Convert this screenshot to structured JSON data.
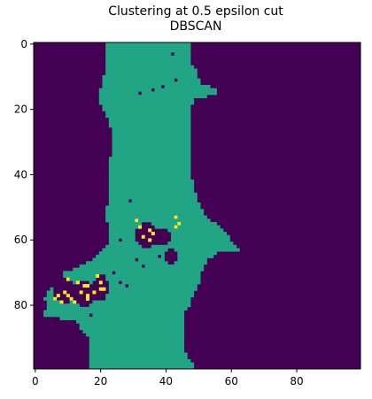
{
  "chart_data": {
    "type": "heatmap",
    "title_lines": [
      "Clustering at 0.5 epsilon cut",
      "DBSCAN"
    ],
    "xlabel": "",
    "ylabel": "",
    "grid_size": [
      100,
      100
    ],
    "xlim": [
      -0.5,
      99.5
    ],
    "ylim": [
      99.5,
      -0.5
    ],
    "x_ticks": [
      0,
      20,
      40,
      60,
      80
    ],
    "y_ticks": [
      0,
      20,
      40,
      60,
      80
    ],
    "grid": false,
    "colormap": "viridis",
    "colors": {
      "background": "#440154",
      "cluster": "#21a585",
      "noise": "#fde725"
    },
    "cluster_region": {
      "row_bounds": [
        [
          0,
          22,
          47
        ],
        [
          6,
          22,
          47
        ],
        [
          8,
          22,
          49
        ],
        [
          10,
          21,
          49
        ],
        [
          12,
          21,
          50
        ],
        [
          14,
          20,
          55
        ],
        [
          15,
          20,
          55
        ],
        [
          17,
          20,
          48
        ],
        [
          20,
          21,
          47
        ],
        [
          24,
          23,
          47
        ],
        [
          28,
          24,
          47
        ],
        [
          32,
          24,
          47
        ],
        [
          36,
          23,
          47
        ],
        [
          40,
          23,
          47
        ],
        [
          44,
          23,
          48
        ],
        [
          48,
          23,
          49
        ],
        [
          50,
          22,
          50
        ],
        [
          52,
          22,
          51
        ],
        [
          54,
          22,
          53
        ],
        [
          56,
          23,
          56
        ],
        [
          58,
          23,
          58
        ],
        [
          60,
          23,
          59
        ],
        [
          62,
          22,
          61
        ],
        [
          63,
          21,
          62
        ],
        [
          64,
          20,
          55
        ],
        [
          66,
          18,
          52
        ],
        [
          68,
          14,
          51
        ],
        [
          70,
          9,
          50
        ],
        [
          72,
          8,
          50
        ],
        [
          74,
          6,
          49
        ],
        [
          76,
          4,
          48
        ],
        [
          78,
          3,
          47
        ],
        [
          80,
          4,
          47
        ],
        [
          82,
          3,
          45
        ],
        [
          83,
          3,
          45
        ],
        [
          85,
          13,
          45
        ],
        [
          87,
          14,
          45
        ],
        [
          89,
          16,
          45
        ],
        [
          91,
          17,
          45
        ],
        [
          94,
          17,
          45
        ],
        [
          97,
          17,
          47
        ],
        [
          99,
          17,
          48
        ]
      ],
      "holes": [
        [
          55,
          62,
          31,
          37
        ],
        [
          57,
          61,
          36,
          41
        ],
        [
          63,
          67,
          40,
          43
        ],
        [
          72,
          79,
          6,
          12
        ],
        [
          73,
          80,
          12,
          18
        ],
        [
          71,
          78,
          18,
          22
        ]
      ],
      "noise_pixels": [
        [
          54,
          31
        ],
        [
          56,
          43
        ],
        [
          55,
          44
        ],
        [
          57,
          35
        ],
        [
          58,
          36
        ],
        [
          60,
          35
        ],
        [
          59,
          33
        ],
        [
          53,
          43
        ],
        [
          56,
          32
        ],
        [
          72,
          10
        ],
        [
          73,
          13
        ],
        [
          74,
          15
        ],
        [
          75,
          20
        ],
        [
          75,
          21
        ],
        [
          76,
          14
        ],
        [
          76,
          9
        ],
        [
          77,
          7
        ],
        [
          78,
          11
        ],
        [
          78,
          6
        ],
        [
          79,
          8
        ],
        [
          76,
          18
        ],
        [
          74,
          16
        ],
        [
          71,
          19
        ],
        [
          77,
          16
        ],
        [
          73,
          20
        ],
        [
          79,
          12
        ],
        [
          78,
          16
        ],
        [
          77,
          10
        ]
      ],
      "extra_holes": [
        [
          3,
          42
        ],
        [
          13,
          39
        ],
        [
          15,
          32
        ],
        [
          14,
          36
        ],
        [
          11,
          43
        ],
        [
          60,
          26
        ],
        [
          66,
          31
        ],
        [
          65,
          38
        ],
        [
          68,
          33
        ],
        [
          73,
          26
        ],
        [
          70,
          24
        ],
        [
          83,
          17
        ],
        [
          74,
          28
        ],
        [
          48,
          29
        ]
      ]
    }
  }
}
